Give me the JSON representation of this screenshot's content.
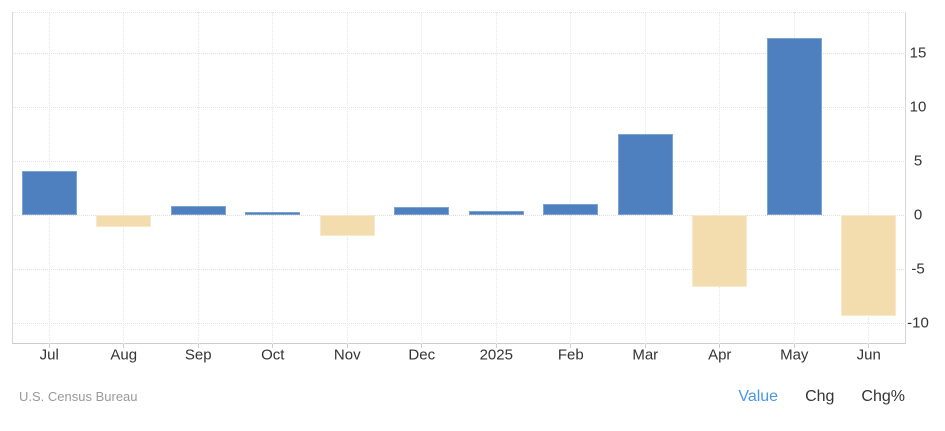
{
  "chart_data": {
    "type": "bar",
    "title": "",
    "xlabel": "",
    "ylabel": "",
    "categories": [
      "Jul",
      "Aug",
      "Sep",
      "Oct",
      "Nov",
      "Dec",
      "2025",
      "Feb",
      "Mar",
      "Apr",
      "May",
      "Jun"
    ],
    "values": [
      4.1,
      -1.1,
      0.9,
      0.3,
      -1.9,
      0.8,
      0.4,
      1.0,
      7.5,
      -6.6,
      16.4,
      -9.3
    ],
    "yticks": [
      15,
      10,
      5,
      0,
      -5,
      -10
    ],
    "ylim": [
      -11.9,
      18.8
    ],
    "grid": "dotted",
    "legend_position": "none",
    "positive_color": "#4e7fbe",
    "positive_border": "#7da3cf",
    "negative_color": "#f3ddae",
    "negative_border": "#f8e9c9"
  },
  "footer": {
    "source": "U.S. Census Bureau",
    "modes": [
      {
        "label": "Value",
        "active": true
      },
      {
        "label": "Chg",
        "active": false
      },
      {
        "label": "Chg%",
        "active": false
      }
    ]
  },
  "colors": {
    "link_active": "#4a97e4",
    "text_dark": "#333333",
    "text_muted": "#999999",
    "grid": "#e1e1e1",
    "axis": "#cccccc"
  }
}
